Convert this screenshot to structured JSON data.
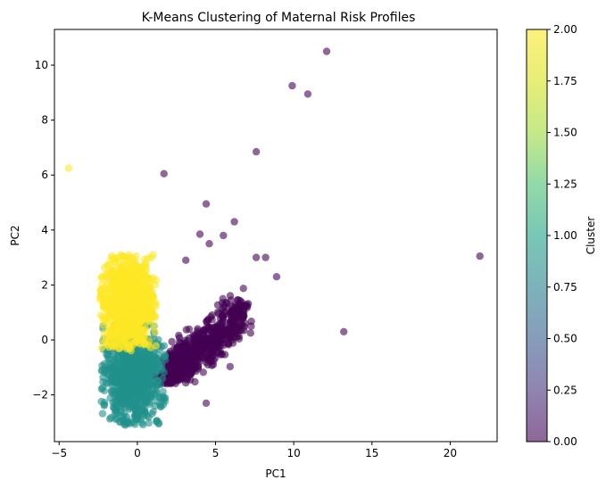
{
  "chart_data": {
    "type": "scatter",
    "title": "K-Means Clustering of Maternal Risk Profiles",
    "xlabel": "PC1",
    "ylabel": "PC2",
    "xlim": [
      -5.3,
      23.0
    ],
    "ylim": [
      -3.7,
      11.3
    ],
    "xticks": [
      -5,
      0,
      5,
      10,
      15,
      20
    ],
    "yticks": [
      -2,
      0,
      2,
      4,
      6,
      8,
      10
    ],
    "xtick_labels": [
      "−5",
      "0",
      "5",
      "10",
      "15",
      "20"
    ],
    "ytick_labels": [
      "−2",
      "0",
      "2",
      "4",
      "6",
      "8",
      "10"
    ],
    "grid": false,
    "colorbar": {
      "label": "Cluster",
      "range": [
        0.0,
        2.0
      ],
      "ticks": [
        0.0,
        0.25,
        0.5,
        0.75,
        1.0,
        1.25,
        1.5,
        1.75,
        2.0
      ],
      "tick_labels": [
        "0.00",
        "0.25",
        "0.50",
        "0.75",
        "1.00",
        "1.25",
        "1.50",
        "1.75",
        "2.00"
      ],
      "colormap": "viridis",
      "alpha": 0.6
    },
    "cluster_colors": {
      "0": "#440154",
      "1": "#21918c",
      "2": "#fde725"
    },
    "outliers": [
      {
        "x": 12.1,
        "y": 10.5,
        "cluster": 0
      },
      {
        "x": 9.9,
        "y": 9.25,
        "cluster": 0
      },
      {
        "x": 10.9,
        "y": 8.95,
        "cluster": 0
      },
      {
        "x": 7.6,
        "y": 6.85,
        "cluster": 0
      },
      {
        "x": 1.7,
        "y": 6.05,
        "cluster": 0
      },
      {
        "x": 4.4,
        "y": 4.95,
        "cluster": 0
      },
      {
        "x": 6.2,
        "y": 4.3,
        "cluster": 0
      },
      {
        "x": 21.9,
        "y": 3.05,
        "cluster": 0
      },
      {
        "x": 13.2,
        "y": 0.3,
        "cluster": 0
      },
      {
        "x": 4.4,
        "y": -2.3,
        "cluster": 0
      },
      {
        "x": 8.9,
        "y": 2.3,
        "cluster": 0
      },
      {
        "x": 8.2,
        "y": 3.0,
        "cluster": 0
      },
      {
        "x": 7.6,
        "y": 3.0,
        "cluster": 0
      },
      {
        "x": 5.5,
        "y": 3.8,
        "cluster": 0
      },
      {
        "x": 4.0,
        "y": 3.85,
        "cluster": 0
      },
      {
        "x": 4.6,
        "y": 3.5,
        "cluster": 0
      },
      {
        "x": 3.1,
        "y": 2.9,
        "cluster": 0
      },
      {
        "x": -4.4,
        "y": 6.25,
        "cluster": 2
      },
      {
        "x": 1.0,
        "y": 3.1,
        "cluster": 2
      }
    ],
    "clusters": [
      {
        "cluster": 0,
        "center": [
          3.5,
          0.3
        ],
        "spread": [
          1.5,
          0.9
        ],
        "count": 700
      },
      {
        "cluster": 1,
        "center": [
          -0.3,
          -1.3
        ],
        "spread": [
          0.9,
          0.8
        ],
        "count": 900
      },
      {
        "cluster": 2,
        "center": [
          -0.6,
          1.3
        ],
        "spread": [
          0.8,
          0.8
        ],
        "count": 900
      }
    ]
  }
}
